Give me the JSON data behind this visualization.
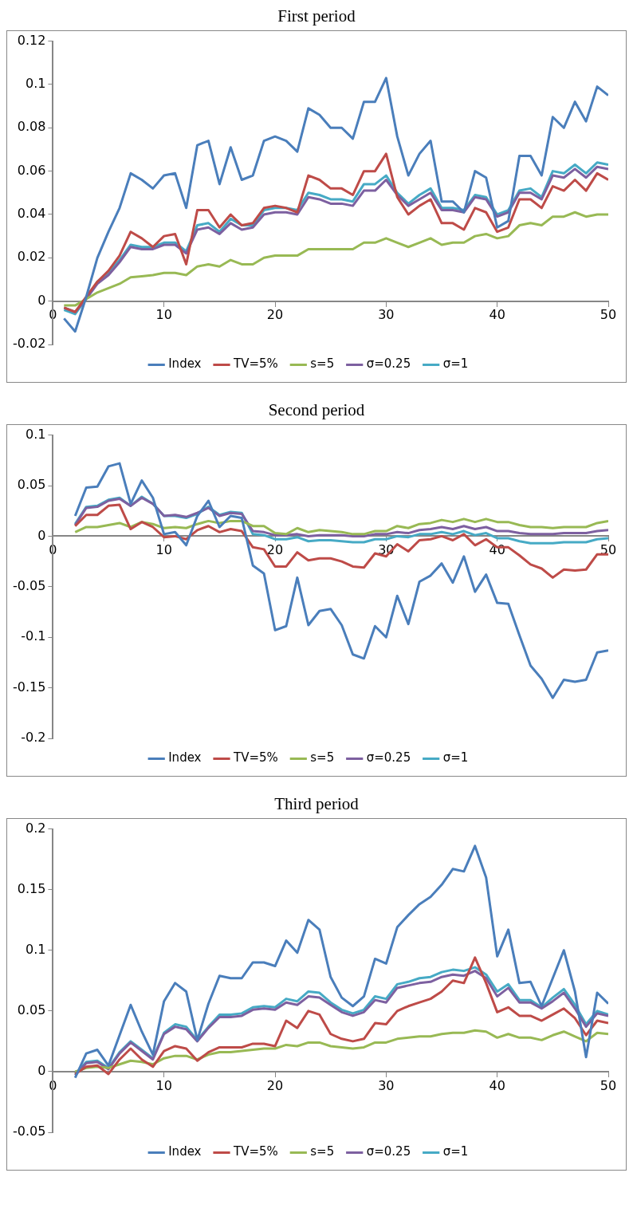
{
  "chart_data": [
    {
      "type": "line",
      "title": "First period",
      "legend": "bottom",
      "marker": "none",
      "line_style": "solid",
      "xlim": [
        0,
        50
      ],
      "xticks": [
        0,
        10,
        20,
        30,
        40,
        50
      ],
      "ylim": [
        -0.02,
        0.12
      ],
      "yticks": [
        -0.02,
        0,
        0.02,
        0.04,
        0.06,
        0.08,
        0.1,
        0.12
      ],
      "x": [
        1,
        2,
        3,
        4,
        5,
        6,
        7,
        8,
        9,
        10,
        11,
        12,
        13,
        14,
        15,
        16,
        17,
        18,
        19,
        20,
        21,
        22,
        23,
        24,
        25,
        26,
        27,
        28,
        29,
        30,
        31,
        32,
        33,
        34,
        35,
        36,
        37,
        38,
        39,
        40,
        41,
        42,
        43,
        44,
        45,
        46,
        47,
        48,
        49,
        50
      ],
      "series": [
        {
          "name": "Index",
          "color": "#4a7ebb",
          "values": [
            -0.008,
            -0.014,
            0.002,
            0.02,
            0.032,
            0.043,
            0.059,
            0.056,
            0.052,
            0.058,
            0.059,
            0.043,
            0.072,
            0.074,
            0.054,
            0.071,
            0.056,
            0.058,
            0.074,
            0.076,
            0.074,
            0.069,
            0.089,
            0.086,
            0.08,
            0.08,
            0.075,
            0.092,
            0.092,
            0.103,
            0.076,
            0.058,
            0.068,
            0.074,
            0.046,
            0.046,
            0.041,
            0.06,
            0.057,
            0.034,
            0.037,
            0.067,
            0.067,
            0.058,
            0.085,
            0.08,
            0.092,
            0.083,
            0.099,
            0.095
          ]
        },
        {
          "name": "TV=5%",
          "color": "#be4b48",
          "values": [
            -0.003,
            -0.005,
            0.002,
            0.009,
            0.014,
            0.021,
            0.032,
            0.029,
            0.025,
            0.03,
            0.031,
            0.017,
            0.042,
            0.042,
            0.034,
            0.04,
            0.035,
            0.036,
            0.043,
            0.044,
            0.043,
            0.041,
            0.058,
            0.056,
            0.052,
            0.052,
            0.049,
            0.06,
            0.06,
            0.068,
            0.048,
            0.04,
            0.044,
            0.047,
            0.036,
            0.036,
            0.033,
            0.043,
            0.041,
            0.032,
            0.034,
            0.047,
            0.047,
            0.043,
            0.053,
            0.051,
            0.056,
            0.051,
            0.059,
            0.056
          ]
        },
        {
          "name": "s=5",
          "color": "#98b954",
          "values": [
            -0.002,
            -0.002,
            0.001,
            0.004,
            0.006,
            0.008,
            0.011,
            0.0115,
            0.012,
            0.013,
            0.013,
            0.012,
            0.016,
            0.017,
            0.016,
            0.019,
            0.017,
            0.017,
            0.02,
            0.021,
            0.021,
            0.021,
            0.024,
            0.024,
            0.024,
            0.024,
            0.024,
            0.027,
            0.027,
            0.029,
            0.027,
            0.025,
            0.027,
            0.029,
            0.026,
            0.027,
            0.027,
            0.03,
            0.031,
            0.029,
            0.03,
            0.035,
            0.036,
            0.035,
            0.039,
            0.039,
            0.041,
            0.039,
            0.04,
            0.04
          ]
        },
        {
          "name": "σ=0.25",
          "color": "#7d60a0",
          "values": [
            -0.003,
            -0.005,
            0.001,
            0.008,
            0.012,
            0.018,
            0.025,
            0.024,
            0.024,
            0.026,
            0.026,
            0.022,
            0.033,
            0.034,
            0.031,
            0.036,
            0.033,
            0.034,
            0.04,
            0.041,
            0.041,
            0.04,
            0.048,
            0.047,
            0.045,
            0.045,
            0.044,
            0.051,
            0.051,
            0.056,
            0.049,
            0.044,
            0.047,
            0.05,
            0.042,
            0.042,
            0.041,
            0.048,
            0.047,
            0.039,
            0.041,
            0.05,
            0.05,
            0.047,
            0.058,
            0.057,
            0.061,
            0.057,
            0.062,
            0.061
          ]
        },
        {
          "name": "σ=1",
          "color": "#46aac5",
          "values": [
            -0.004,
            -0.006,
            0.001,
            0.009,
            0.013,
            0.019,
            0.026,
            0.025,
            0.025,
            0.027,
            0.027,
            0.023,
            0.035,
            0.036,
            0.032,
            0.038,
            0.035,
            0.035,
            0.042,
            0.043,
            0.043,
            0.042,
            0.05,
            0.049,
            0.047,
            0.047,
            0.046,
            0.054,
            0.054,
            0.058,
            0.05,
            0.045,
            0.049,
            0.052,
            0.043,
            0.043,
            0.042,
            0.049,
            0.048,
            0.04,
            0.042,
            0.051,
            0.052,
            0.048,
            0.06,
            0.059,
            0.063,
            0.059,
            0.064,
            0.063
          ]
        }
      ]
    },
    {
      "type": "line",
      "title": "Second period",
      "legend": "bottom",
      "marker": "none",
      "line_style": "solid",
      "xlim": [
        0,
        50
      ],
      "xticks": [
        0,
        10,
        20,
        30,
        40,
        50
      ],
      "ylim": [
        -0.2,
        0.1
      ],
      "yticks": [
        -0.2,
        -0.15,
        -0.1,
        -0.05,
        0,
        0.05,
        0.1
      ],
      "x": [
        2,
        3,
        4,
        5,
        6,
        7,
        8,
        9,
        10,
        11,
        12,
        13,
        14,
        15,
        16,
        17,
        18,
        19,
        20,
        21,
        22,
        23,
        24,
        25,
        26,
        27,
        28,
        29,
        30,
        31,
        32,
        33,
        34,
        35,
        36,
        37,
        38,
        39,
        40,
        41,
        42,
        43,
        44,
        45,
        46,
        47,
        48,
        49,
        50
      ],
      "series": [
        {
          "name": "Index",
          "color": "#4a7ebb",
          "values": [
            0.02,
            0.048,
            0.049,
            0.069,
            0.072,
            0.032,
            0.055,
            0.038,
            0.002,
            0.004,
            -0.009,
            0.02,
            0.035,
            0.009,
            0.02,
            0.018,
            -0.029,
            -0.037,
            -0.093,
            -0.089,
            -0.041,
            -0.088,
            -0.074,
            -0.072,
            -0.088,
            -0.117,
            -0.121,
            -0.089,
            -0.1,
            -0.059,
            -0.087,
            -0.045,
            -0.039,
            -0.027,
            -0.046,
            -0.02,
            -0.055,
            -0.038,
            -0.066,
            -0.067,
            -0.098,
            -0.128,
            -0.141,
            -0.16,
            -0.142,
            -0.144,
            -0.142,
            -0.115,
            -0.113
          ]
        },
        {
          "name": "TV=5%",
          "color": "#be4b48",
          "values": [
            0.01,
            0.021,
            0.021,
            0.03,
            0.031,
            0.007,
            0.014,
            0.009,
            -0.001,
            0,
            -0.003,
            0.006,
            0.01,
            0.004,
            0.007,
            0.005,
            -0.011,
            -0.013,
            -0.03,
            -0.03,
            -0.016,
            -0.024,
            -0.022,
            -0.022,
            -0.025,
            -0.03,
            -0.031,
            -0.017,
            -0.02,
            -0.008,
            -0.015,
            -0.004,
            -0.003,
            0,
            -0.004,
            0.002,
            -0.009,
            -0.003,
            -0.011,
            -0.011,
            -0.019,
            -0.028,
            -0.032,
            -0.041,
            -0.033,
            -0.034,
            -0.033,
            -0.018,
            -0.018
          ]
        },
        {
          "name": "s=5",
          "color": "#98b954",
          "values": [
            0.004,
            0.009,
            0.009,
            0.011,
            0.013,
            0.009,
            0.014,
            0.012,
            0.008,
            0.009,
            0.008,
            0.012,
            0.015,
            0.013,
            0.015,
            0.015,
            0.01,
            0.01,
            0.003,
            0.002,
            0.008,
            0.004,
            0.006,
            0.005,
            0.004,
            0.002,
            0.002,
            0.005,
            0.005,
            0.01,
            0.008,
            0.012,
            0.013,
            0.016,
            0.014,
            0.017,
            0.014,
            0.017,
            0.014,
            0.014,
            0.011,
            0.009,
            0.009,
            0.008,
            0.009,
            0.009,
            0.009,
            0.013,
            0.015
          ]
        },
        {
          "name": "σ=0.25",
          "color": "#7d60a0",
          "values": [
            0.011,
            0.028,
            0.029,
            0.035,
            0.037,
            0.03,
            0.038,
            0.032,
            0.02,
            0.021,
            0.019,
            0.023,
            0.028,
            0.02,
            0.023,
            0.022,
            0.005,
            0.004,
            0.001,
            0.001,
            0.002,
            0,
            0.001,
            0.001,
            0.001,
            0,
            0,
            0.002,
            0.002,
            0.004,
            0.003,
            0.006,
            0.007,
            0.009,
            0.007,
            0.01,
            0.007,
            0.009,
            0.005,
            0.005,
            0.003,
            0.002,
            0.002,
            0.002,
            0.003,
            0.003,
            0.003,
            0.005,
            0.006
          ]
        },
        {
          "name": "σ=1",
          "color": "#46aac5",
          "values": [
            0.012,
            0.029,
            0.03,
            0.036,
            0.038,
            0.03,
            0.039,
            0.032,
            0.02,
            0.02,
            0.018,
            0.022,
            0.029,
            0.021,
            0.024,
            0.023,
            0.002,
            0.001,
            -0.003,
            -0.003,
            -0.001,
            -0.005,
            -0.004,
            -0.004,
            -0.005,
            -0.006,
            -0.006,
            -0.003,
            -0.003,
            0,
            -0.001,
            0.002,
            0.002,
            0.004,
            0.002,
            0.005,
            0.001,
            0.003,
            -0.002,
            -0.002,
            -0.005,
            -0.007,
            -0.007,
            -0.007,
            -0.006,
            -0.006,
            -0.006,
            -0.003,
            -0.002
          ]
        }
      ]
    },
    {
      "type": "line",
      "title": "Third period",
      "legend": "bottom",
      "marker": "none",
      "line_style": "solid",
      "xlim": [
        0,
        50
      ],
      "xticks": [
        0,
        10,
        20,
        30,
        40,
        50
      ],
      "ylim": [
        -0.05,
        0.2
      ],
      "yticks": [
        -0.05,
        0,
        0.05,
        0.1,
        0.15,
        0.2
      ],
      "x": [
        2,
        3,
        4,
        5,
        6,
        7,
        8,
        9,
        10,
        11,
        12,
        13,
        14,
        15,
        16,
        17,
        18,
        19,
        20,
        21,
        22,
        23,
        24,
        25,
        26,
        27,
        28,
        29,
        30,
        31,
        32,
        33,
        34,
        35,
        36,
        37,
        38,
        39,
        40,
        41,
        42,
        43,
        44,
        45,
        46,
        47,
        48,
        49,
        50
      ],
      "series": [
        {
          "name": "Index",
          "color": "#4a7ebb",
          "values": [
            -0.005,
            0.015,
            0.018,
            0.005,
            0.03,
            0.055,
            0.033,
            0.014,
            0.058,
            0.073,
            0.066,
            0.026,
            0.056,
            0.079,
            0.077,
            0.077,
            0.09,
            0.09,
            0.087,
            0.108,
            0.098,
            0.125,
            0.117,
            0.078,
            0.061,
            0.054,
            0.062,
            0.093,
            0.089,
            0.119,
            0.129,
            0.138,
            0.144,
            0.154,
            0.167,
            0.165,
            0.186,
            0.16,
            0.095,
            0.117,
            0.073,
            0.074,
            0.054,
            0.077,
            0.1,
            0.066,
            0.012,
            0.065,
            0.056
          ]
        },
        {
          "name": "TV=5%",
          "color": "#be4b48",
          "values": [
            -0.002,
            0.004,
            0.005,
            -0.002,
            0.01,
            0.019,
            0.01,
            0.004,
            0.017,
            0.021,
            0.019,
            0.009,
            0.016,
            0.02,
            0.02,
            0.02,
            0.023,
            0.023,
            0.021,
            0.042,
            0.036,
            0.05,
            0.047,
            0.031,
            0.027,
            0.025,
            0.027,
            0.04,
            0.039,
            0.05,
            0.054,
            0.057,
            0.06,
            0.066,
            0.075,
            0.073,
            0.094,
            0.073,
            0.049,
            0.053,
            0.046,
            0.046,
            0.042,
            0.047,
            0.052,
            0.044,
            0.03,
            0.042,
            0.04
          ]
        },
        {
          "name": "s=5",
          "color": "#98b954",
          "values": [
            0,
            0.003,
            0.004,
            0.003,
            0.006,
            0.009,
            0.008,
            0.006,
            0.011,
            0.013,
            0.013,
            0.01,
            0.014,
            0.016,
            0.016,
            0.017,
            0.018,
            0.019,
            0.019,
            0.022,
            0.021,
            0.024,
            0.024,
            0.021,
            0.02,
            0.019,
            0.02,
            0.024,
            0.024,
            0.027,
            0.028,
            0.029,
            0.029,
            0.031,
            0.032,
            0.032,
            0.034,
            0.033,
            0.028,
            0.031,
            0.028,
            0.028,
            0.026,
            0.03,
            0.033,
            0.029,
            0.025,
            0.032,
            0.031
          ]
        },
        {
          "name": "σ=0.25",
          "color": "#7d60a0",
          "values": [
            -0.003,
            0.007,
            0.008,
            0.002,
            0.015,
            0.024,
            0.017,
            0.01,
            0.031,
            0.037,
            0.035,
            0.025,
            0.036,
            0.045,
            0.045,
            0.046,
            0.051,
            0.052,
            0.051,
            0.057,
            0.055,
            0.062,
            0.061,
            0.055,
            0.049,
            0.046,
            0.049,
            0.059,
            0.057,
            0.069,
            0.071,
            0.073,
            0.074,
            0.078,
            0.08,
            0.079,
            0.083,
            0.077,
            0.062,
            0.069,
            0.057,
            0.057,
            0.052,
            0.058,
            0.065,
            0.052,
            0.037,
            0.048,
            0.046
          ]
        },
        {
          "name": "σ=1",
          "color": "#46aac5",
          "values": [
            -0.002,
            0.008,
            0.009,
            0.003,
            0.016,
            0.025,
            0.018,
            0.011,
            0.032,
            0.039,
            0.037,
            0.026,
            0.037,
            0.047,
            0.047,
            0.048,
            0.053,
            0.054,
            0.053,
            0.06,
            0.058,
            0.066,
            0.065,
            0.057,
            0.051,
            0.048,
            0.051,
            0.062,
            0.06,
            0.072,
            0.074,
            0.077,
            0.078,
            0.082,
            0.084,
            0.083,
            0.086,
            0.08,
            0.066,
            0.072,
            0.059,
            0.059,
            0.053,
            0.061,
            0.068,
            0.055,
            0.039,
            0.05,
            0.047
          ]
        }
      ]
    }
  ]
}
